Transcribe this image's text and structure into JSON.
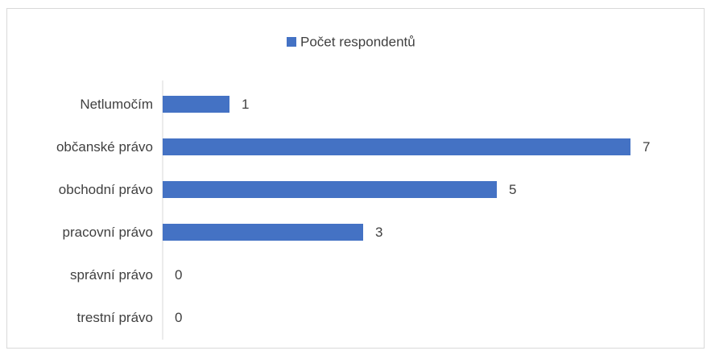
{
  "chart_data": {
    "type": "bar",
    "orientation": "horizontal",
    "legend_position": "top",
    "series": [
      {
        "name": "Počet respondentů",
        "color": "#4472c4",
        "values": [
          1,
          7,
          5,
          3,
          0,
          0
        ]
      }
    ],
    "categories": [
      "Netlumočím",
      "občanské právo",
      "obchodní právo",
      "pracovní právo",
      "správní právo",
      "trestní právo"
    ],
    "xlim": [
      0,
      7
    ]
  }
}
